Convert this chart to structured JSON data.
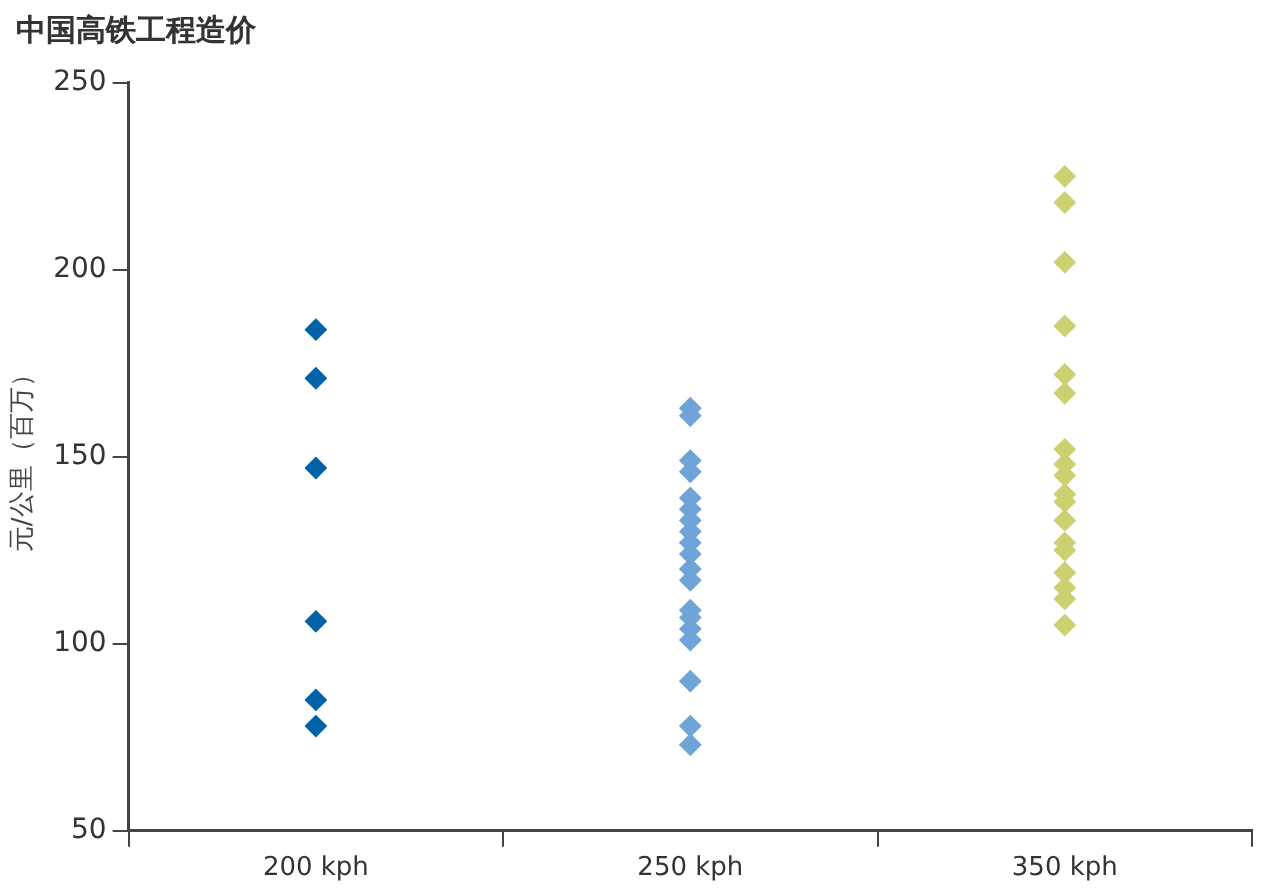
{
  "chart_data": {
    "type": "scatter",
    "title": "中国高铁工程造价",
    "ylabel": "元/公里（百万）",
    "categories": [
      "200 kph",
      "250 kph",
      "350 kph"
    ],
    "ylim": [
      50,
      250
    ],
    "yticks": [
      50,
      100,
      150,
      200,
      250
    ],
    "grid": false,
    "marker": "diamond",
    "series": [
      {
        "color": "#0062a9",
        "x": [
          "200 kph",
          "200 kph",
          "200 kph",
          "200 kph",
          "200 kph",
          "200 kph"
        ],
        "values": [
          184,
          171,
          147,
          106,
          85,
          78
        ]
      },
      {
        "color": "#6fa4d8",
        "x": [
          "250 kph",
          "250 kph",
          "250 kph",
          "250 kph",
          "250 kph",
          "250 kph",
          "250 kph",
          "250 kph",
          "250 kph",
          "250 kph",
          "250 kph",
          "250 kph",
          "250 kph",
          "250 kph",
          "250 kph",
          "250 kph",
          "250 kph",
          "250 kph",
          "250 kph"
        ],
        "values": [
          163,
          161,
          149,
          146,
          139,
          136,
          133,
          130,
          127,
          124,
          120,
          117,
          109,
          107,
          104,
          101,
          90,
          78,
          73
        ]
      },
      {
        "color": "#cdd070",
        "x": [
          "350 kph",
          "350 kph",
          "350 kph",
          "350 kph",
          "350 kph",
          "350 kph",
          "350 kph",
          "350 kph",
          "350 kph",
          "350 kph",
          "350 kph",
          "350 kph",
          "350 kph",
          "350 kph",
          "350 kph",
          "350 kph",
          "350 kph",
          "350 kph"
        ],
        "values": [
          225,
          218,
          202,
          185,
          172,
          167,
          152,
          148,
          145,
          140,
          138,
          133,
          127,
          125,
          119,
          115,
          112,
          105
        ]
      }
    ]
  }
}
